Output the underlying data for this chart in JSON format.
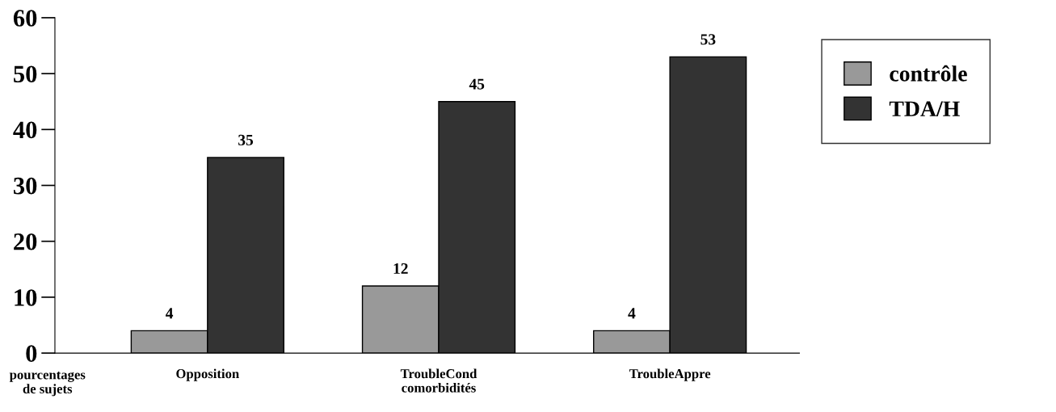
{
  "chart_data": {
    "type": "bar",
    "ylabel": "pourcentages\nde sujets",
    "categories": [
      "Opposition",
      "TroubleCond\ncomorbidités",
      "TroubleAppre"
    ],
    "series": [
      {
        "name": "contrôle",
        "color": "#999999",
        "values": [
          4,
          12,
          4
        ]
      },
      {
        "name": "TDA/H",
        "color": "#333333",
        "values": [
          35,
          45,
          53
        ]
      }
    ],
    "ylim": [
      0,
      60
    ],
    "yticks": [
      0,
      10,
      20,
      30,
      40,
      50,
      60
    ],
    "data_labels": true,
    "legend": "right",
    "grid": false
  }
}
